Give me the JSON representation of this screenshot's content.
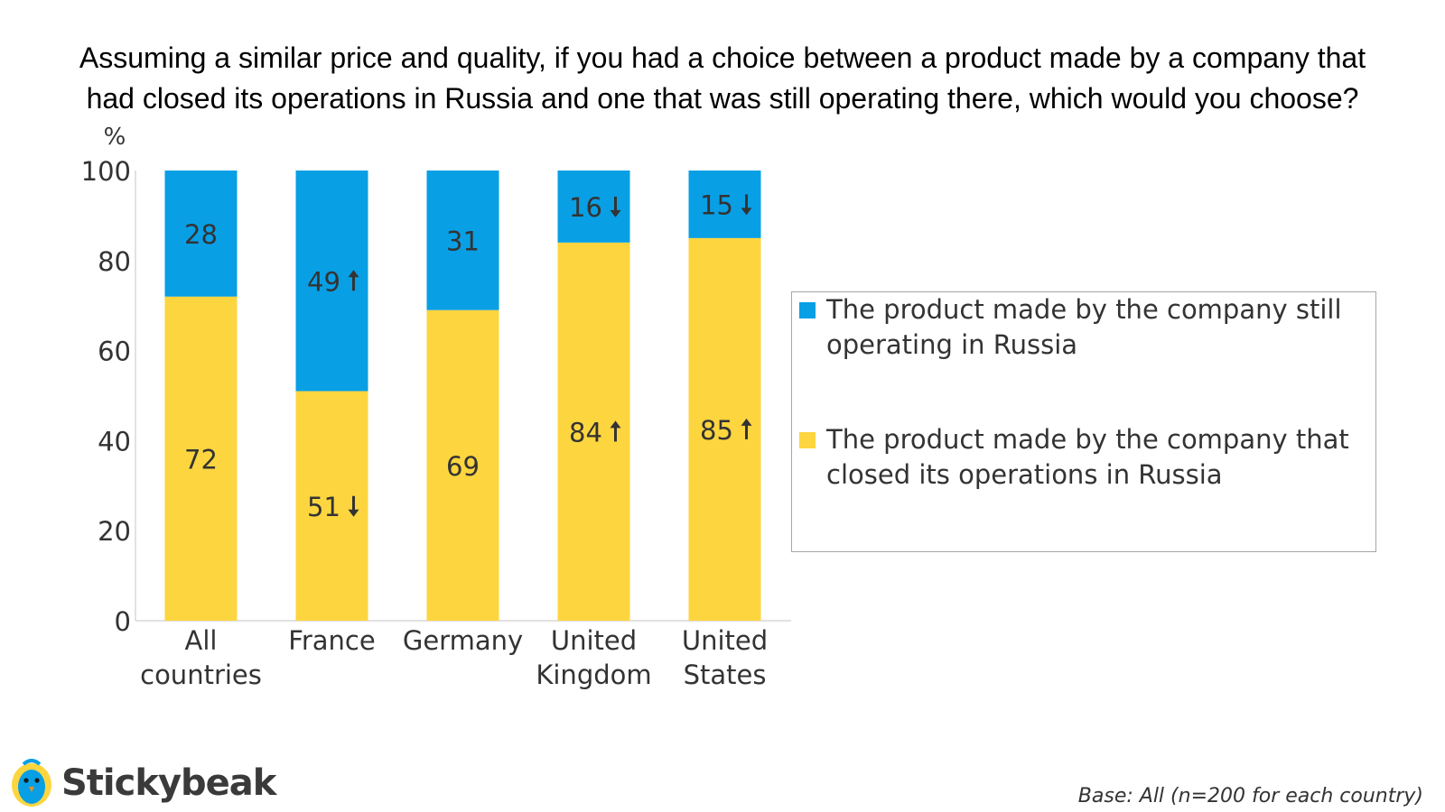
{
  "chart_data": {
    "type": "bar",
    "stacked": true,
    "title_lines": [
      "Assuming a similar price and quality, if you had a choice between a product made by a company that",
      "had closed its operations in Russia and one that was still operating there, which would you choose?"
    ],
    "ylabel": "%",
    "ylim": [
      0,
      100
    ],
    "yticks": [
      "0",
      "20",
      "40",
      "60",
      "80",
      "100"
    ],
    "categories": [
      [
        "All",
        "countries"
      ],
      [
        "France"
      ],
      [
        "Germany"
      ],
      [
        "United",
        "Kingdom"
      ],
      [
        "United",
        "States"
      ]
    ],
    "series": [
      {
        "name": "The product made by the company that closed its operations in Russia",
        "color": "#fdd53f",
        "values": [
          72,
          51,
          69,
          84,
          85
        ],
        "labels": [
          "72",
          "51",
          "69",
          "84",
          "85"
        ],
        "arrows": [
          "",
          "down",
          "",
          "up",
          "up"
        ]
      },
      {
        "name": "The product made by the company still operating in Russia",
        "color": "#089fe5",
        "values": [
          28,
          49,
          31,
          16,
          15
        ],
        "labels": [
          "28",
          "49",
          "31",
          "16",
          "15"
        ],
        "arrows": [
          "",
          "up",
          "",
          "down",
          "down"
        ]
      }
    ],
    "legend_position": "right",
    "grid": false
  },
  "legend": {
    "items": [
      {
        "label": "The product made by the company still operating in Russia",
        "color": "#089fe5"
      },
      {
        "label": "The product made by the company that closed its operations in Russia",
        "color": "#fdd53f"
      }
    ]
  },
  "brand": {
    "name": "Stickybeak",
    "color": "#3a3a3a",
    "icon": "bird-icon"
  },
  "footnote": "Base: All (n=200 for each country)"
}
